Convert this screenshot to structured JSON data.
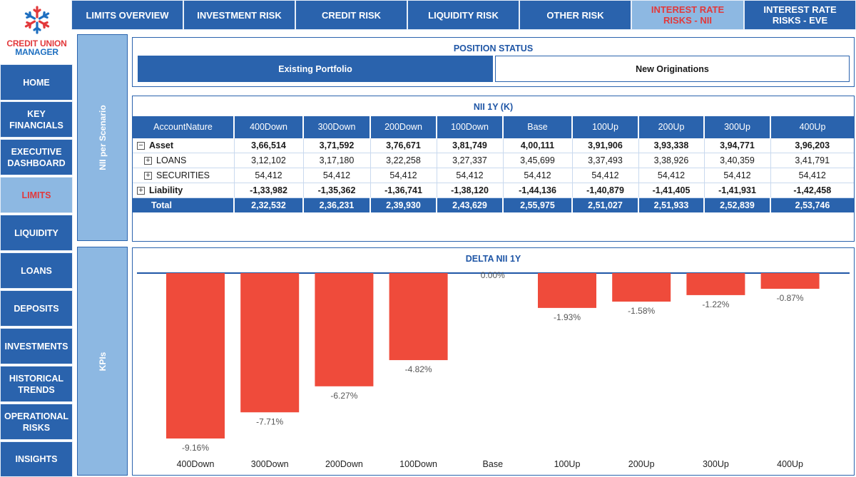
{
  "brand": {
    "line1": "CREDIT UNION",
    "line2": "MANAGER",
    "colors": {
      "red": "#e2393b",
      "blue": "#1e6fc0"
    }
  },
  "sidebar": {
    "items": [
      {
        "label": "HOME"
      },
      {
        "label": "KEY FINANCIALS"
      },
      {
        "label": "EXECUTIVE DASHBOARD"
      },
      {
        "label": "LIMITS"
      },
      {
        "label": "LIQUIDITY"
      },
      {
        "label": "LOANS"
      },
      {
        "label": "DEPOSITS"
      },
      {
        "label": "INVESTMENTS"
      },
      {
        "label": "HISTORICAL TRENDS"
      },
      {
        "label": "OPERATIONAL RISKS"
      },
      {
        "label": "INSIGHTS"
      }
    ],
    "active": "LIMITS"
  },
  "tabs": [
    {
      "label": "LIMITS OVERVIEW"
    },
    {
      "label": "INVESTMENT RISK"
    },
    {
      "label": "CREDIT RISK"
    },
    {
      "label": "LIQUIDITY RISK"
    },
    {
      "label": "OTHER RISK"
    },
    {
      "label": "INTEREST RATE RISKS - NII"
    },
    {
      "label": "INTEREST RATE RISKS - EVE"
    }
  ],
  "side_panels": {
    "top": "NII per Scenario",
    "bottom": "KPIs"
  },
  "position_status": {
    "title": "POSITION STATUS",
    "existing": "Existing Portfolio",
    "new": "New Originations"
  },
  "nii_table": {
    "title": "NII 1Y (K)",
    "columns": [
      "AccountNature",
      "400Down",
      "300Down",
      "200Down",
      "100Down",
      "Base",
      "100Up",
      "200Up",
      "300Up",
      "400Up"
    ],
    "rows": [
      {
        "expander": "−",
        "label": "Asset",
        "bold": true,
        "values": [
          "3,66,514",
          "3,71,592",
          "3,76,671",
          "3,81,749",
          "4,00,111",
          "3,91,906",
          "3,93,338",
          "3,94,771",
          "3,96,203"
        ]
      },
      {
        "expander": "+",
        "label": "LOANS",
        "bold": false,
        "indent": true,
        "values": [
          "3,12,102",
          "3,17,180",
          "3,22,258",
          "3,27,337",
          "3,45,699",
          "3,37,493",
          "3,38,926",
          "3,40,359",
          "3,41,791"
        ]
      },
      {
        "expander": "+",
        "label": "SECURITIES",
        "bold": false,
        "indent": true,
        "values": [
          "54,412",
          "54,412",
          "54,412",
          "54,412",
          "54,412",
          "54,412",
          "54,412",
          "54,412",
          "54,412"
        ]
      },
      {
        "expander": "+",
        "label": "Liability",
        "bold": true,
        "values": [
          "-1,33,982",
          "-1,35,362",
          "-1,36,741",
          "-1,38,120",
          "-1,44,136",
          "-1,40,879",
          "-1,41,405",
          "-1,41,931",
          "-1,42,458"
        ]
      }
    ],
    "total": {
      "label": "Total",
      "values": [
        "2,32,532",
        "2,36,231",
        "2,39,930",
        "2,43,629",
        "2,55,975",
        "2,51,027",
        "2,51,933",
        "2,52,839",
        "2,53,746"
      ]
    }
  },
  "chart_data": {
    "type": "bar",
    "title": "DELTA NII 1Y",
    "categories": [
      "400Down",
      "300Down",
      "200Down",
      "100Down",
      "Base",
      "100Up",
      "200Up",
      "300Up",
      "400Up"
    ],
    "values": [
      -9.16,
      -7.71,
      -6.27,
      -4.82,
      0.0,
      -1.93,
      -1.58,
      -1.22,
      -0.87
    ],
    "labels": [
      "-9.16%",
      "-7.71%",
      "-6.27%",
      "-4.82%",
      "0.00%",
      "-1.93%",
      "-1.58%",
      "-1.22%",
      "-0.87%"
    ],
    "ylim": [
      -9.16,
      0
    ],
    "unit": "%",
    "bar_color": "#ef4b3b",
    "axis_color": "#1f56a6"
  }
}
